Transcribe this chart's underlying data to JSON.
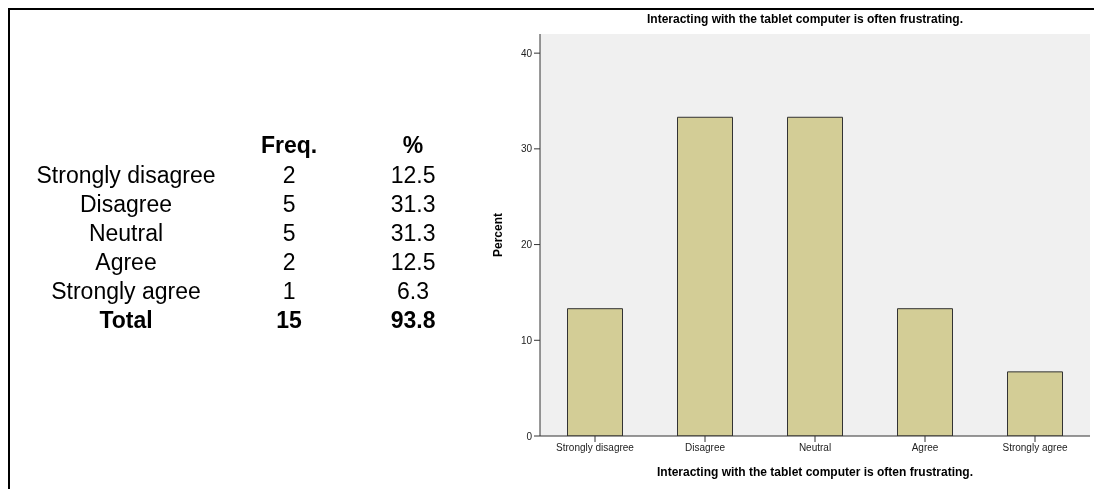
{
  "chart_data": [
    {
      "type": "other",
      "categories": [
        "Strongly disagree",
        "Disagree",
        "Neutral",
        "Agree",
        "Strongly agree",
        "Total"
      ],
      "series": [
        {
          "name": "Freq.",
          "values": [
            2,
            5,
            5,
            2,
            1,
            15
          ]
        },
        {
          "name": "%",
          "values": [
            12.5,
            31.3,
            31.3,
            12.5,
            6.3,
            93.8
          ]
        }
      ],
      "data_labels": true
    },
    {
      "type": "bar",
      "title": "Interacting with the tablet computer is often frustrating.",
      "xlabel": "Interacting with the tablet computer is often frustrating.",
      "ylabel": "Percent",
      "categories": [
        "Strongly disagree",
        "Disagree",
        "Neutral",
        "Agree",
        "Strongly agree"
      ],
      "values": [
        13.3,
        33.3,
        33.3,
        13.3,
        6.7
      ],
      "color": "#d3cd96",
      "ylim": [
        0,
        42
      ],
      "yticks": [
        0,
        10,
        20,
        30,
        40
      ],
      "grid": false,
      "legend": false
    }
  ]
}
